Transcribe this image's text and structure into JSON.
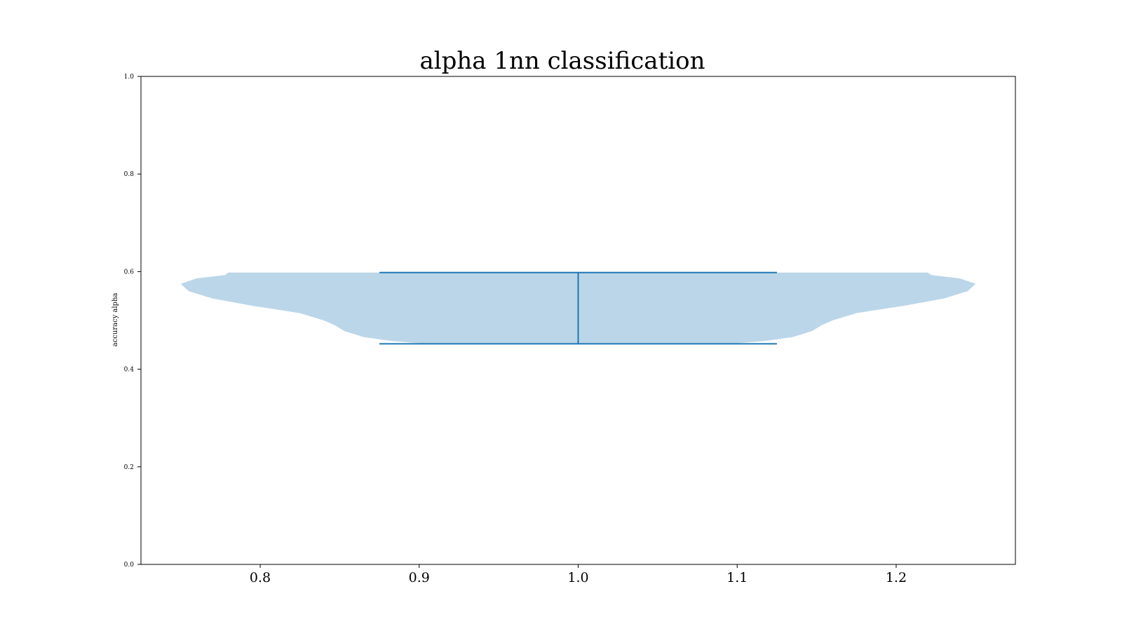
{
  "chart_data": {
    "type": "violin",
    "title": "alpha 1nn classification",
    "xlabel": "",
    "ylabel": "accuracy alpha",
    "xlim": [
      0.725,
      1.275
    ],
    "ylim": [
      0.0,
      1.0
    ],
    "x_ticks": [
      "0.8",
      "0.9",
      "1.0",
      "1.1",
      "1.2"
    ],
    "y_ticks": [
      "0.0",
      "0.2",
      "0.4",
      "0.6",
      "0.8",
      "1.0"
    ],
    "grid": false,
    "violins": [
      {
        "position": 1.0,
        "min": 0.452,
        "max": 0.598,
        "density_profile": [
          {
            "y": 0.452,
            "half_width": 0.095
          },
          {
            "y": 0.458,
            "half_width": 0.118
          },
          {
            "y": 0.466,
            "half_width": 0.135
          },
          {
            "y": 0.478,
            "half_width": 0.147
          },
          {
            "y": 0.49,
            "half_width": 0.153
          },
          {
            "y": 0.5,
            "half_width": 0.16
          },
          {
            "y": 0.515,
            "half_width": 0.175
          },
          {
            "y": 0.53,
            "half_width": 0.205
          },
          {
            "y": 0.545,
            "half_width": 0.23
          },
          {
            "y": 0.56,
            "half_width": 0.245
          },
          {
            "y": 0.575,
            "half_width": 0.25
          },
          {
            "y": 0.586,
            "half_width": 0.24
          },
          {
            "y": 0.593,
            "half_width": 0.222
          },
          {
            "y": 0.598,
            "half_width": 0.22
          }
        ],
        "color": "#1f77b4",
        "fill_color": "#1f77b4",
        "fill_alpha": 0.3
      }
    ]
  }
}
